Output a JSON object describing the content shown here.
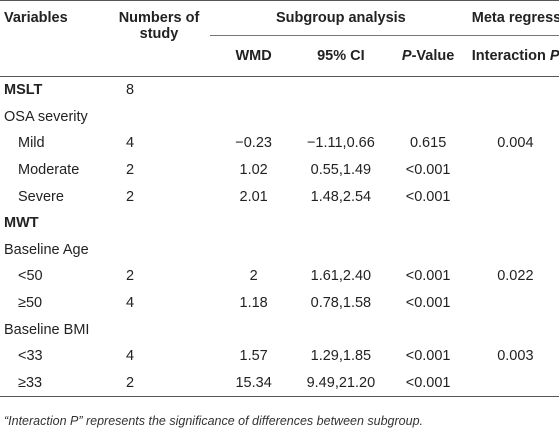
{
  "headers": {
    "variables": "Variables",
    "numbers_of_study_1": "Numbers of",
    "numbers_of_study_2": "study",
    "subgroup_analysis": "Subgroup analysis",
    "meta_regression": "Meta regression",
    "wmd": "WMD",
    "ci": "95% CI",
    "p_value_italic": "P",
    "p_value_rest": "-Value",
    "interaction": "Interaction ",
    "interaction_p": "P"
  },
  "rows": [
    {
      "variable": "MSLT",
      "n": "8",
      "wmd": "",
      "ci": "",
      "p": "",
      "interaction": "",
      "style": "bold"
    },
    {
      "variable": "OSA severity",
      "n": "",
      "wmd": "",
      "ci": "",
      "p": "",
      "interaction": "",
      "style": "group"
    },
    {
      "variable": "Mild",
      "n": "4",
      "wmd": "−0.23",
      "ci": "−1.11,0.66",
      "p": "0.615",
      "interaction": "0.004",
      "style": "indent"
    },
    {
      "variable": "Moderate",
      "n": "2",
      "wmd": "1.02",
      "ci": "0.55,1.49",
      "p": "<0.001",
      "interaction": "",
      "style": "indent"
    },
    {
      "variable": "Severe",
      "n": "2",
      "wmd": "2.01",
      "ci": "1.48,2.54",
      "p": "<0.001",
      "interaction": "",
      "style": "indent"
    },
    {
      "variable": "MWT",
      "n": "",
      "wmd": "",
      "ci": "",
      "p": "",
      "interaction": "",
      "style": "bold"
    },
    {
      "variable": "Baseline Age",
      "n": "",
      "wmd": "",
      "ci": "",
      "p": "",
      "interaction": "",
      "style": "group"
    },
    {
      "variable": "<50",
      "n": "2",
      "wmd": "2",
      "ci": "1.61,2.40",
      "p": "<0.001",
      "interaction": "0.022",
      "style": "indent"
    },
    {
      "variable": "≥50",
      "n": "4",
      "wmd": "1.18",
      "ci": "0.78,1.58",
      "p": "<0.001",
      "interaction": "",
      "style": "indent"
    },
    {
      "variable": "Baseline BMI",
      "n": "",
      "wmd": "",
      "ci": "",
      "p": "",
      "interaction": "",
      "style": "group"
    },
    {
      "variable": "<33",
      "n": "4",
      "wmd": "1.57",
      "ci": "1.29,1.85",
      "p": "<0.001",
      "interaction": "0.003",
      "style": "indent"
    },
    {
      "variable": "≥33",
      "n": "2",
      "wmd": "15.34",
      "ci": "9.49,21.20",
      "p": "<0.001",
      "interaction": "",
      "style": "indent"
    }
  ],
  "footnote": "“Interaction P” represents the significance of differences between subgroup."
}
